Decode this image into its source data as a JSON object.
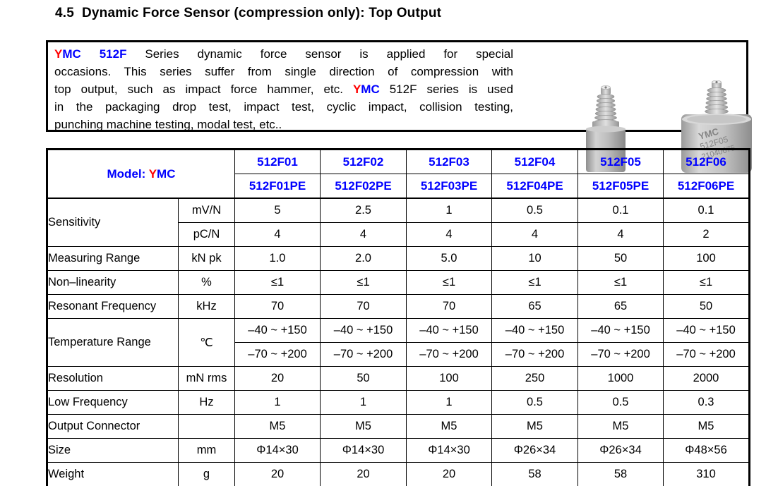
{
  "page": {
    "title": "4.5  Dynamic Force Sensor (compression only): Top Output"
  },
  "colors": {
    "accent_red": "#FF0000",
    "accent_blue": "#0000FF",
    "border": "#000000"
  },
  "intro": {
    "lines": [
      [
        {
          "t": "Y",
          "c": "red",
          "b": true
        },
        {
          "t": "MC",
          "c": "blue",
          "b": true
        },
        {
          "t": " "
        },
        {
          "t": "512F",
          "c": "blue",
          "b": true
        },
        {
          "t": " Series dynamic force sensor is applied for special"
        }
      ],
      [
        {
          "t": "occasions. This series suffer from single direction of compression with"
        }
      ],
      [
        {
          "t": "top output, such as impact force hammer, etc. "
        },
        {
          "t": "Y",
          "c": "red",
          "b": true
        },
        {
          "t": "MC",
          "c": "blue",
          "b": true
        },
        {
          "t": " 512F series is used"
        }
      ],
      [
        {
          "t": "in the packaging drop test, impact test, cyclic impact, collision testing,"
        }
      ],
      [
        {
          "t": "punching machine testing, modal test, etc.."
        }
      ]
    ]
  },
  "photos": {
    "engraving": [
      "YMC",
      "512F05",
      "21040675"
    ]
  },
  "table": {
    "model_label_segments": [
      {
        "t": "Model: ",
        "b": true
      },
      {
        "t": "Y",
        "c": "red",
        "b": true
      },
      {
        "t": "MC",
        "c": "blue",
        "b": true
      }
    ],
    "columns_row1": [
      "512F01",
      "512F02",
      "512F03",
      "512F04",
      "512F05",
      "512F06"
    ],
    "columns_row2": [
      "512F01PE",
      "512F02PE",
      "512F03PE",
      "512F04PE",
      "512F05PE",
      "512F06PE"
    ],
    "rows": [
      {
        "label": "Sensitivity",
        "units": [
          "mV/N",
          "pC/N"
        ],
        "unit_span": false,
        "values": [
          [
            "5",
            "2.5",
            "1",
            "0.5",
            "0.1",
            "0.1"
          ],
          [
            "4",
            "4",
            "4",
            "4",
            "4",
            "2"
          ]
        ]
      },
      {
        "label": "Measuring Range",
        "units": [
          "kN pk"
        ],
        "unit_span": false,
        "values": [
          [
            "1.0",
            "2.0",
            "5.0",
            "10",
            "50",
            "100"
          ]
        ]
      },
      {
        "label": "Non–linearity",
        "units": [
          "%"
        ],
        "unit_span": false,
        "values": [
          [
            "≤1",
            "≤1",
            "≤1",
            "≤1",
            "≤1",
            "≤1"
          ]
        ]
      },
      {
        "label": "Resonant Frequency",
        "units": [
          "kHz"
        ],
        "unit_span": false,
        "values": [
          [
            "70",
            "70",
            "70",
            "65",
            "65",
            "50"
          ]
        ]
      },
      {
        "label": "Temperature Range",
        "units": [
          "℃"
        ],
        "unit_span": true,
        "values": [
          [
            "–40 ~ +150",
            "–40 ~ +150",
            "–40 ~ +150",
            "–40 ~ +150",
            "–40 ~ +150",
            "–40 ~ +150"
          ],
          [
            "–70 ~ +200",
            "–70 ~ +200",
            "–70 ~ +200",
            "–70 ~ +200",
            "–70 ~ +200",
            "–70 ~ +200"
          ]
        ]
      },
      {
        "label": "Resolution",
        "units": [
          "mN rms"
        ],
        "unit_span": false,
        "values": [
          [
            "20",
            "50",
            "100",
            "250",
            "1000",
            "2000"
          ]
        ]
      },
      {
        "label": "Low Frequency",
        "units": [
          "Hz"
        ],
        "unit_span": false,
        "values": [
          [
            "1",
            "1",
            "1",
            "0.5",
            "0.5",
            "0.3"
          ]
        ]
      },
      {
        "label": "Output Connector",
        "units": [
          ""
        ],
        "unit_span": false,
        "values": [
          [
            "M5",
            "M5",
            "M5",
            "M5",
            "M5",
            "M5"
          ]
        ]
      },
      {
        "label": "Size",
        "units": [
          "mm"
        ],
        "unit_span": false,
        "values": [
          [
            "Φ14×30",
            "Φ14×30",
            "Φ14×30",
            "Φ26×34",
            "Φ26×34",
            "Φ48×56"
          ]
        ]
      },
      {
        "label": "Weight",
        "units": [
          "g"
        ],
        "unit_span": false,
        "values": [
          [
            "20",
            "20",
            "20",
            "58",
            "58",
            "310"
          ]
        ]
      }
    ]
  }
}
